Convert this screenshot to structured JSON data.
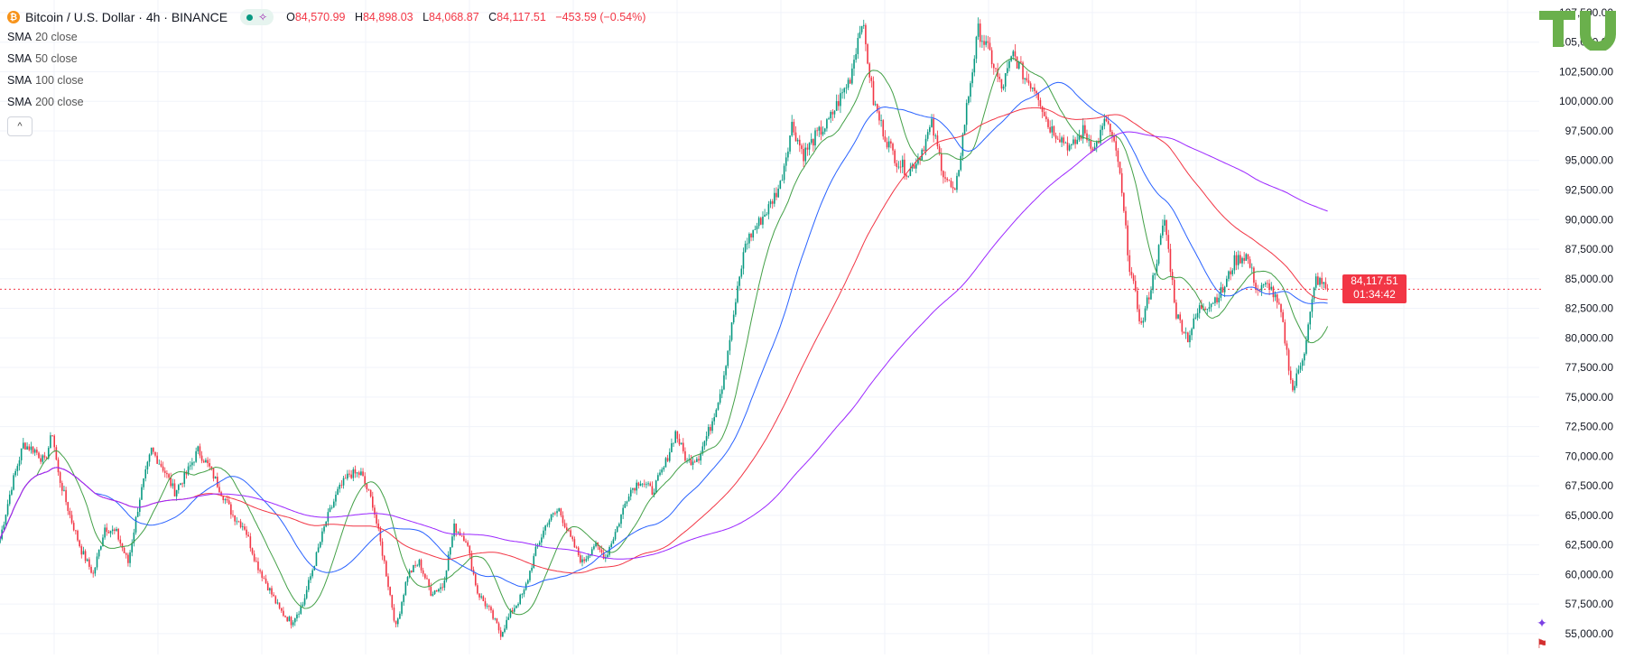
{
  "header": {
    "symbol": "Bitcoin / U.S. Dollar · 4h · BINANCE",
    "coin_glyph": "₿",
    "ohlc": {
      "o_label": "O",
      "o": "84,570.99",
      "h_label": "H",
      "h": "84,898.03",
      "l_label": "L",
      "l": "84,068.87",
      "c_label": "C",
      "c": "84,117.51",
      "change": "−453.59 (−0.54%)"
    }
  },
  "indicators": [
    {
      "name": "SMA",
      "arg": "20 close"
    },
    {
      "name": "SMA",
      "arg": "50 close"
    },
    {
      "name": "SMA",
      "arg": "100 close"
    },
    {
      "name": "SMA",
      "arg": "200 close"
    }
  ],
  "price_tag": {
    "price": "84,117.51",
    "countdown": "01:34:42"
  },
  "colors": {
    "up": "#089981",
    "down": "#f23645",
    "sma20": "#43a047",
    "sma50": "#2962ff",
    "sma100": "#f23645",
    "sma200": "#9c27ff",
    "logo": "#6ab04c",
    "last_price_line": "#f23645"
  },
  "chart_data": {
    "type": "line",
    "title": "Bitcoin / U.S. Dollar · 4h · BINANCE",
    "y_ticks": [
      "55,000.00",
      "57,500.00",
      "60,000.00",
      "62,500.00",
      "65,000.00",
      "67,500.00",
      "70,000.00",
      "72,500.00",
      "75,000.00",
      "77,500.00",
      "80,000.00",
      "82,500.00",
      "85,000.00",
      "87,500.00",
      "90,000.00",
      "92,500.00",
      "95,000.00",
      "97,500.00",
      "100,000.00",
      "102,500.00",
      "105,000.00",
      "107,500.00"
    ],
    "ylim": [
      54000,
      107800
    ],
    "grid": true,
    "last_price": 84117.51,
    "candles_per_anchor": 10,
    "price_path": [
      {
        "i": 0,
        "v": 63000
      },
      {
        "i": 6,
        "v": 67500
      },
      {
        "i": 12,
        "v": 71000
      },
      {
        "i": 18,
        "v": 70500
      },
      {
        "i": 23,
        "v": 69500
      },
      {
        "i": 27,
        "v": 72000
      },
      {
        "i": 30,
        "v": 68500
      },
      {
        "i": 36,
        "v": 65000
      },
      {
        "i": 42,
        "v": 62000
      },
      {
        "i": 48,
        "v": 60000
      },
      {
        "i": 54,
        "v": 64000
      },
      {
        "i": 60,
        "v": 63500
      },
      {
        "i": 66,
        "v": 61000
      },
      {
        "i": 72,
        "v": 66500
      },
      {
        "i": 78,
        "v": 70500
      },
      {
        "i": 84,
        "v": 69000
      },
      {
        "i": 90,
        "v": 67000
      },
      {
        "i": 96,
        "v": 68500
      },
      {
        "i": 102,
        "v": 70500
      },
      {
        "i": 108,
        "v": 69000
      },
      {
        "i": 114,
        "v": 67000
      },
      {
        "i": 120,
        "v": 65000
      },
      {
        "i": 126,
        "v": 64000
      },
      {
        "i": 132,
        "v": 61000
      },
      {
        "i": 138,
        "v": 59000
      },
      {
        "i": 144,
        "v": 57000
      },
      {
        "i": 150,
        "v": 56000
      },
      {
        "i": 156,
        "v": 57500
      },
      {
        "i": 162,
        "v": 61000
      },
      {
        "i": 168,
        "v": 64500
      },
      {
        "i": 174,
        "v": 67000
      },
      {
        "i": 180,
        "v": 68500
      },
      {
        "i": 186,
        "v": 68500
      },
      {
        "i": 192,
        "v": 66000
      },
      {
        "i": 198,
        "v": 61000
      },
      {
        "i": 204,
        "v": 55500
      },
      {
        "i": 210,
        "v": 60000
      },
      {
        "i": 216,
        "v": 61000
      },
      {
        "i": 222,
        "v": 58500
      },
      {
        "i": 228,
        "v": 59000
      },
      {
        "i": 234,
        "v": 64000
      },
      {
        "i": 240,
        "v": 63000
      },
      {
        "i": 246,
        "v": 58500
      },
      {
        "i": 252,
        "v": 57000
      },
      {
        "i": 258,
        "v": 55000
      },
      {
        "i": 264,
        "v": 57000
      },
      {
        "i": 270,
        "v": 58500
      },
      {
        "i": 276,
        "v": 62000
      },
      {
        "i": 282,
        "v": 64500
      },
      {
        "i": 288,
        "v": 65500
      },
      {
        "i": 294,
        "v": 63000
      },
      {
        "i": 300,
        "v": 61000
      },
      {
        "i": 306,
        "v": 62500
      },
      {
        "i": 312,
        "v": 61500
      },
      {
        "i": 318,
        "v": 64000
      },
      {
        "i": 324,
        "v": 67000
      },
      {
        "i": 330,
        "v": 68000
      },
      {
        "i": 336,
        "v": 67000
      },
      {
        "i": 342,
        "v": 69000
      },
      {
        "i": 348,
        "v": 72000
      },
      {
        "i": 354,
        "v": 69500
      },
      {
        "i": 360,
        "v": 70000
      },
      {
        "i": 366,
        "v": 72500
      },
      {
        "i": 372,
        "v": 76000
      },
      {
        "i": 378,
        "v": 82000
      },
      {
        "i": 384,
        "v": 88000
      },
      {
        "i": 390,
        "v": 89500
      },
      {
        "i": 396,
        "v": 91000
      },
      {
        "i": 402,
        "v": 93000
      },
      {
        "i": 408,
        "v": 98000
      },
      {
        "i": 414,
        "v": 95500
      },
      {
        "i": 420,
        "v": 97000
      },
      {
        "i": 426,
        "v": 98000
      },
      {
        "i": 432,
        "v": 100000
      },
      {
        "i": 438,
        "v": 102000
      },
      {
        "i": 444,
        "v": 107000
      },
      {
        "i": 450,
        "v": 100000
      },
      {
        "i": 456,
        "v": 97000
      },
      {
        "i": 462,
        "v": 95000
      },
      {
        "i": 468,
        "v": 94000
      },
      {
        "i": 474,
        "v": 95500
      },
      {
        "i": 480,
        "v": 98000
      },
      {
        "i": 486,
        "v": 94000
      },
      {
        "i": 492,
        "v": 92000
      },
      {
        "i": 498,
        "v": 99500
      },
      {
        "i": 504,
        "v": 106000
      },
      {
        "i": 510,
        "v": 104000
      },
      {
        "i": 516,
        "v": 101000
      },
      {
        "i": 522,
        "v": 104000
      },
      {
        "i": 528,
        "v": 102000
      },
      {
        "i": 534,
        "v": 101000
      },
      {
        "i": 540,
        "v": 98000
      },
      {
        "i": 546,
        "v": 97000
      },
      {
        "i": 552,
        "v": 96000
      },
      {
        "i": 558,
        "v": 97500
      },
      {
        "i": 564,
        "v": 96000
      },
      {
        "i": 570,
        "v": 98500
      },
      {
        "i": 576,
        "v": 95000
      },
      {
        "i": 582,
        "v": 86000
      },
      {
        "i": 588,
        "v": 81000
      },
      {
        "i": 594,
        "v": 85000
      },
      {
        "i": 600,
        "v": 90000
      },
      {
        "i": 606,
        "v": 82000
      },
      {
        "i": 612,
        "v": 80000
      },
      {
        "i": 618,
        "v": 82500
      },
      {
        "i": 624,
        "v": 83000
      },
      {
        "i": 630,
        "v": 84000
      },
      {
        "i": 636,
        "v": 86500
      },
      {
        "i": 642,
        "v": 87000
      },
      {
        "i": 648,
        "v": 84000
      },
      {
        "i": 654,
        "v": 84500
      },
      {
        "i": 660,
        "v": 82000
      },
      {
        "i": 666,
        "v": 75500
      },
      {
        "i": 672,
        "v": 79000
      },
      {
        "i": 678,
        "v": 85000
      },
      {
        "i": 684,
        "v": 84117.51
      }
    ]
  }
}
